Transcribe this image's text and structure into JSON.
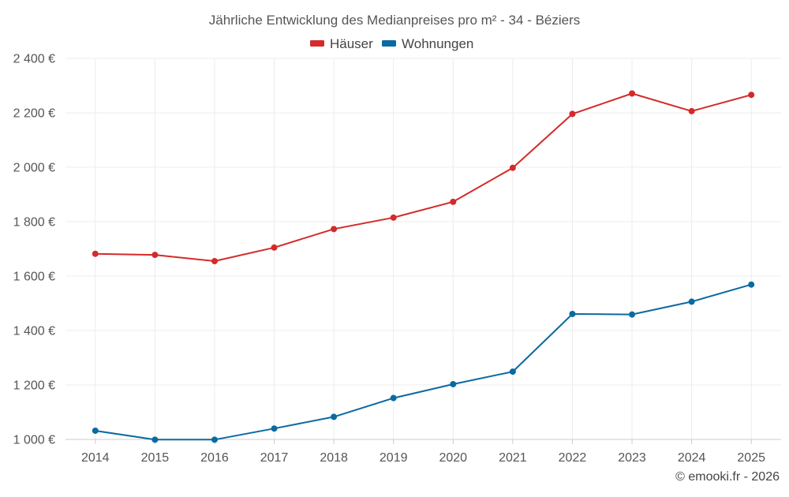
{
  "chart_data": {
    "type": "line",
    "title": "Jährliche Entwicklung des Medianpreises pro m² - 34 - Béziers",
    "categories": [
      "2014",
      "2015",
      "2016",
      "2017",
      "2018",
      "2019",
      "2020",
      "2021",
      "2022",
      "2023",
      "2024",
      "2025"
    ],
    "series": [
      {
        "name": "Häuser",
        "color": "#d42a2a",
        "values": [
          1682,
          1678,
          1655,
          1705,
          1773,
          1815,
          1873,
          1998,
          2196,
          2271,
          2206,
          2266
        ]
      },
      {
        "name": "Wohnungen",
        "color": "#0a6aa1",
        "values": [
          1032,
          999,
          999,
          1040,
          1083,
          1152,
          1203,
          1249,
          1461,
          1459,
          1506,
          1569
        ]
      }
    ],
    "yticks": [
      1000,
      1200,
      1400,
      1600,
      1800,
      2000,
      2200,
      2400
    ],
    "ytick_labels": [
      "1 000 €",
      "1 200 €",
      "1 400 €",
      "1 600 €",
      "1 800 €",
      "2 000 €",
      "2 200 €",
      "2 400 €"
    ],
    "ylim": [
      1000,
      2400
    ],
    "xlabel": "",
    "ylabel": "",
    "grid": true,
    "legend_position": "top-center"
  },
  "credit": "© emooki.fr - 2026"
}
